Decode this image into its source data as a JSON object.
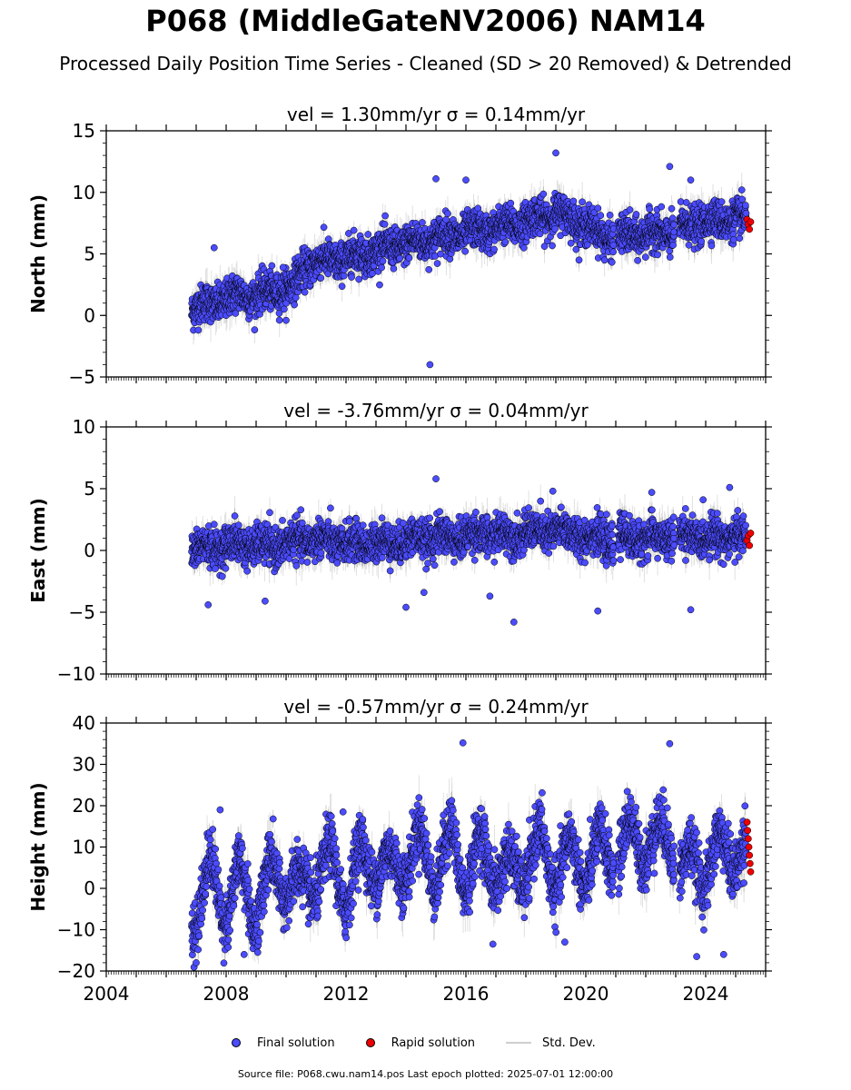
{
  "page": {
    "title": "P068 (MiddleGateNV2006) NAM14",
    "subtitle": "Processed Daily Position Time Series - Cleaned (SD > 20 Removed) & Detrended",
    "source": "Source file: P068.cwu.nam14.pos  Last epoch plotted: 2025-07-01 12:00:00"
  },
  "legend": {
    "final_label": "Final solution",
    "rapid_label": "Rapid solution",
    "std_label": "Std. Dev."
  },
  "colors": {
    "final": "#4b4bff",
    "rapid": "#ee0000",
    "std": "#c8c8c8",
    "marker_edge": "#000000"
  },
  "chart_data": [
    {
      "type": "scatter",
      "title": "vel = 1.30mm/yr   σ = 0.14mm/yr",
      "ylabel": "North (mm)",
      "ylim": [
        -5,
        15
      ],
      "yticks": [
        -5,
        0,
        5,
        10,
        15
      ],
      "xlim": [
        2004,
        2026
      ],
      "xticks": [
        2004,
        2008,
        2012,
        2016,
        2020,
        2024
      ],
      "series": [
        {
          "name": "Final solution",
          "x": [
            2006.9,
            2007.5,
            2008.0,
            2008.5,
            2009.0,
            2009.5,
            2010.2,
            2010.6,
            2011.0,
            2011.5,
            2012.0,
            2012.5,
            2013.0,
            2013.5,
            2014.0,
            2014.5,
            2015.0,
            2015.5,
            2016.0,
            2016.5,
            2017.0,
            2017.5,
            2018.0,
            2018.5,
            2019.0,
            2019.5,
            2020.0,
            2020.5,
            2020.9,
            2021.2,
            2021.5,
            2022.0,
            2022.5,
            2022.8,
            2023.3,
            2023.6,
            2024.0,
            2024.5,
            2025.0,
            2025.3
          ],
          "y": [
            0.5,
            1.0,
            1.3,
            1.8,
            1.5,
            2.0,
            2.2,
            4.0,
            4.3,
            4.5,
            4.6,
            5.0,
            5.2,
            5.6,
            5.8,
            6.0,
            6.3,
            6.5,
            6.7,
            6.9,
            7.0,
            7.4,
            7.6,
            8.0,
            8.3,
            8.0,
            7.3,
            6.6,
            6.3,
            6.4,
            6.5,
            6.6,
            6.7,
            6.6,
            7.2,
            7.4,
            7.6,
            7.7,
            7.9,
            7.7
          ]
        },
        {
          "name": "Rapid solution",
          "x": [
            2025.38,
            2025.42,
            2025.46,
            2025.5
          ],
          "y": [
            7.8,
            7.4,
            7.0,
            7.6
          ]
        }
      ],
      "outliers_final": [
        [
          2014.8,
          -4.0
        ],
        [
          2019.0,
          13.2
        ],
        [
          2022.8,
          12.1
        ],
        [
          2009.9,
          3.9
        ],
        [
          2016.0,
          11.0
        ],
        [
          2015.0,
          11.1
        ],
        [
          2023.5,
          11.0
        ],
        [
          2007.6,
          5.5
        ]
      ]
    },
    {
      "type": "scatter",
      "title": "vel = -3.76mm/yr   σ = 0.04mm/yr",
      "ylabel": "East (mm)",
      "ylim": [
        -10,
        10
      ],
      "yticks": [
        -10,
        -5,
        0,
        5,
        10
      ],
      "xlim": [
        2004,
        2026
      ],
      "xticks": [
        2004,
        2008,
        2012,
        2016,
        2020,
        2024
      ],
      "series": [
        {
          "name": "Final solution",
          "x": [
            2006.9,
            2007.5,
            2008.0,
            2008.5,
            2009.0,
            2009.5,
            2010.0,
            2010.5,
            2011.0,
            2011.5,
            2012.0,
            2012.5,
            2013.0,
            2013.5,
            2014.0,
            2014.5,
            2015.0,
            2015.5,
            2016.0,
            2016.5,
            2017.0,
            2017.5,
            2018.0,
            2018.5,
            2019.0,
            2019.5,
            2020.0,
            2020.5,
            2020.9,
            2021.2,
            2021.5,
            2022.0,
            2022.5,
            2022.8,
            2023.3,
            2023.6,
            2024.0,
            2024.5,
            2025.0,
            2025.3
          ],
          "y": [
            0.0,
            0.3,
            0.4,
            0.5,
            0.4,
            0.3,
            0.6,
            0.8,
            0.9,
            0.7,
            0.6,
            0.5,
            0.7,
            0.6,
            0.8,
            1.0,
            1.1,
            1.0,
            1.2,
            1.3,
            1.3,
            1.2,
            1.4,
            1.5,
            1.6,
            1.4,
            1.1,
            1.0,
            0.6,
            1.2,
            1.0,
            0.9,
            1.0,
            1.1,
            1.2,
            1.2,
            1.0,
            1.1,
            1.2,
            1.0
          ]
        },
        {
          "name": "Rapid solution",
          "x": [
            2025.38,
            2025.42,
            2025.46,
            2025.5
          ],
          "y": [
            0.8,
            1.2,
            0.4,
            1.4
          ]
        }
      ],
      "outliers_final": [
        [
          2007.4,
          -4.4
        ],
        [
          2009.3,
          -4.1
        ],
        [
          2014.0,
          -4.6
        ],
        [
          2017.6,
          -5.8
        ],
        [
          2020.4,
          -4.9
        ],
        [
          2023.5,
          -4.8
        ],
        [
          2015.0,
          5.8
        ],
        [
          2024.8,
          5.1
        ],
        [
          2018.9,
          4.8
        ],
        [
          2022.2,
          4.7
        ],
        [
          2014.6,
          -3.4
        ],
        [
          2016.8,
          -3.7
        ]
      ]
    },
    {
      "type": "scatter",
      "title": "vel = -0.57mm/yr   σ = 0.24mm/yr",
      "ylabel": "Height (mm)",
      "ylim": [
        -20,
        40
      ],
      "yticks": [
        -20,
        -10,
        0,
        10,
        20,
        30,
        40
      ],
      "xlim": [
        2004,
        2026
      ],
      "xticks": [
        2004,
        2008,
        2012,
        2016,
        2020,
        2024
      ],
      "series": [
        {
          "name": "Final solution",
          "x": [
            2006.9,
            2007.5,
            2008.0,
            2008.5,
            2009.0,
            2009.5,
            2010.0,
            2010.5,
            2011.0,
            2011.5,
            2012.0,
            2012.5,
            2013.0,
            2013.5,
            2014.0,
            2014.5,
            2015.0,
            2015.5,
            2016.0,
            2016.5,
            2017.0,
            2017.5,
            2018.0,
            2018.5,
            2019.0,
            2019.5,
            2020.0,
            2020.5,
            2020.9,
            2021.2,
            2021.5,
            2022.0,
            2022.5,
            2022.8,
            2023.3,
            2023.6,
            2024.0,
            2024.5,
            2025.0,
            2025.3
          ],
          "y": [
            -5,
            2,
            -3,
            1,
            -4,
            2,
            3,
            -2,
            4,
            5,
            0,
            6,
            7,
            3,
            8,
            9,
            5,
            10,
            4,
            8,
            6,
            2,
            7,
            9,
            5,
            7,
            6,
            8,
            9,
            10,
            11,
            12,
            10,
            14,
            3,
            5,
            6,
            8,
            10,
            9
          ]
        },
        {
          "name": "Rapid solution",
          "x": [
            2025.38,
            2025.4,
            2025.42,
            2025.44,
            2025.46,
            2025.48,
            2025.5
          ],
          "y": [
            16,
            14,
            12,
            10,
            8,
            6,
            4
          ]
        }
      ],
      "outliers_final": [
        [
          2015.9,
          35.2
        ],
        [
          2022.8,
          35.0
        ],
        [
          2007.0,
          -18.0
        ],
        [
          2023.7,
          -16.5
        ],
        [
          2024.6,
          -16.0
        ],
        [
          2007.8,
          19.0
        ],
        [
          2011.9,
          18.5
        ],
        [
          2016.9,
          -13.5
        ],
        [
          2019.3,
          -13.0
        ],
        [
          2008.6,
          -16.0
        ]
      ]
    }
  ]
}
